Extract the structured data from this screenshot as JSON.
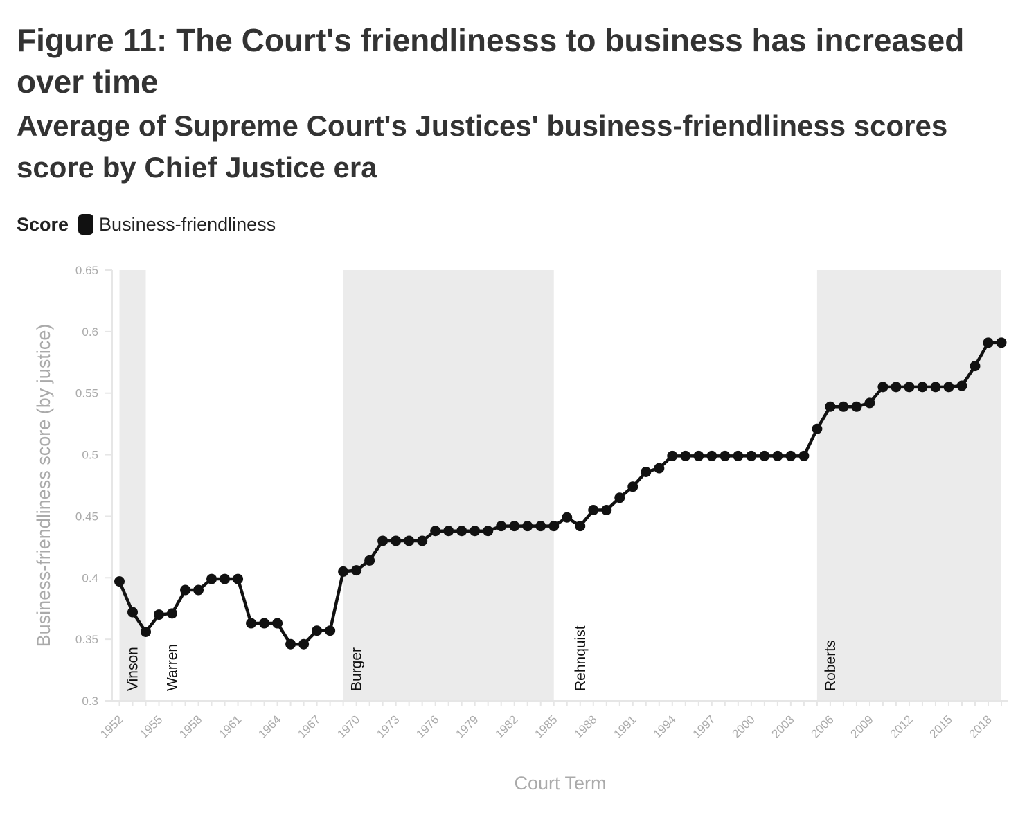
{
  "title": "Figure 11: The Court's friendlinesss to business has increased over time",
  "subtitle": "Average of Supreme Court's Justices' business-friendliness scores score by Chief Justice era",
  "legend": {
    "title": "Score",
    "item": "Business-friendliness",
    "color": "#111111"
  },
  "chart_data": {
    "type": "line",
    "title": "Figure 11: The Court's friendlinesss to business has increased over time",
    "subtitle": "Average of Supreme Court's Justices' business-friendliness scores score by Chief Justice era",
    "xlabel": "Court Term",
    "ylabel": "Business-friendliness score (by justice)",
    "xlim": [
      1952,
      2019
    ],
    "ylim": [
      0.3,
      0.65
    ],
    "yticks": [
      0.3,
      0.35,
      0.4,
      0.45,
      0.5,
      0.55,
      0.6,
      0.65
    ],
    "ytick_labels": [
      "0.3",
      "0.35",
      "0.4",
      "0.45",
      "0.5",
      "0.55",
      "0.6",
      "0.65"
    ],
    "xticks": [
      1952,
      1955,
      1958,
      1961,
      1964,
      1967,
      1970,
      1973,
      1976,
      1979,
      1982,
      1985,
      1988,
      1991,
      1994,
      1997,
      2000,
      2003,
      2006,
      2009,
      2012,
      2015,
      2018
    ],
    "xtick_labels": [
      "1952",
      "1955",
      "1958",
      "1961",
      "1964",
      "1967",
      "1970",
      "1973",
      "1976",
      "1979",
      "1982",
      "1985",
      "1988",
      "1991",
      "1994",
      "1997",
      "2000",
      "2003",
      "2006",
      "2009",
      "2012",
      "2015",
      "2018"
    ],
    "grid": false,
    "legend_position": "top-left",
    "eras": [
      {
        "name": "Vinson",
        "start": 1952,
        "end": 1954,
        "shaded": true
      },
      {
        "name": "Warren",
        "start": 1955,
        "end": 1968,
        "shaded": false
      },
      {
        "name": "Burger",
        "start": 1969,
        "end": 1985,
        "shaded": true
      },
      {
        "name": "Rehnquist",
        "start": 1986,
        "end": 2004,
        "shaded": false
      },
      {
        "name": "Roberts",
        "start": 2005,
        "end": 2019,
        "shaded": true
      }
    ],
    "series": [
      {
        "name": "Business-friendliness",
        "color": "#111111",
        "x": [
          1952,
          1953,
          1954,
          1955,
          1956,
          1957,
          1958,
          1959,
          1960,
          1961,
          1962,
          1963,
          1964,
          1965,
          1966,
          1967,
          1968,
          1969,
          1970,
          1971,
          1972,
          1973,
          1974,
          1975,
          1976,
          1977,
          1978,
          1979,
          1980,
          1981,
          1982,
          1983,
          1984,
          1985,
          1986,
          1987,
          1988,
          1989,
          1990,
          1991,
          1992,
          1993,
          1994,
          1995,
          1996,
          1997,
          1998,
          1999,
          2000,
          2001,
          2002,
          2003,
          2004,
          2005,
          2006,
          2007,
          2008,
          2009,
          2010,
          2011,
          2012,
          2013,
          2014,
          2015,
          2016,
          2017,
          2018,
          2019
        ],
        "values": [
          0.397,
          0.372,
          0.356,
          0.37,
          0.371,
          0.39,
          0.39,
          0.399,
          0.399,
          0.399,
          0.363,
          0.363,
          0.363,
          0.346,
          0.346,
          0.357,
          0.357,
          0.405,
          0.406,
          0.414,
          0.43,
          0.43,
          0.43,
          0.43,
          0.438,
          0.438,
          0.438,
          0.438,
          0.438,
          0.442,
          0.442,
          0.442,
          0.442,
          0.442,
          0.449,
          0.442,
          0.455,
          0.455,
          0.465,
          0.474,
          0.486,
          0.489,
          0.499,
          0.499,
          0.499,
          0.499,
          0.499,
          0.499,
          0.499,
          0.499,
          0.499,
          0.499,
          0.499,
          0.521,
          0.539,
          0.539,
          0.539,
          0.542,
          0.555,
          0.555,
          0.555,
          0.555,
          0.555,
          0.555,
          0.556,
          0.572,
          0.591,
          0.591
        ]
      }
    ]
  }
}
